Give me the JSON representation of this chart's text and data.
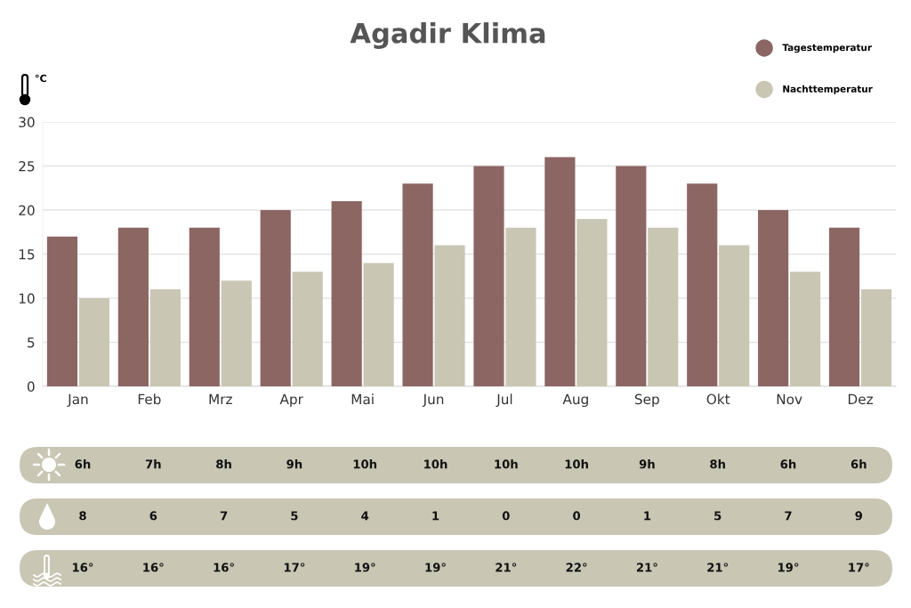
{
  "chart_data": [
    {
      "type": "bar",
      "title": "Agadir Klima",
      "ylabel": "°C",
      "categories": [
        "Jan",
        "Feb",
        "Mrz",
        "Apr",
        "Mai",
        "Jun",
        "Jul",
        "Aug",
        "Sep",
        "Okt",
        "Nov",
        "Dez"
      ],
      "series": [
        {
          "name": "Tagestemperatur",
          "color": "#8c6663",
          "values": [
            17,
            18,
            18,
            20,
            21,
            23,
            25,
            26,
            25,
            23,
            20,
            18
          ]
        },
        {
          "name": "Nachttemperatur",
          "color": "#c9c6b4",
          "values": [
            10,
            11,
            12,
            13,
            14,
            16,
            18,
            19,
            18,
            16,
            13,
            11
          ]
        }
      ],
      "ylim": [
        0,
        30
      ],
      "yticks": [
        0,
        5,
        10,
        15,
        20,
        25,
        30
      ],
      "grid": "y",
      "legend": "top right"
    },
    {
      "type": "other",
      "categories": [
        null,
        null,
        null,
        null,
        null,
        null,
        null,
        null,
        null,
        null,
        null,
        null
      ],
      "values": [
        6,
        7,
        8,
        9,
        10,
        10,
        10,
        10,
        9,
        8,
        6,
        6
      ],
      "value_labels": [
        "6h",
        "7h",
        "8h",
        "9h",
        "10h",
        "10h",
        "10h",
        "10h",
        "9h",
        "8h",
        "6h",
        "6h"
      ]
    },
    {
      "type": "other",
      "categories": [
        null,
        null,
        null,
        null,
        null,
        null,
        null,
        null,
        null,
        null,
        null,
        null
      ],
      "values": [
        8,
        6,
        7,
        5,
        4,
        1,
        0,
        0,
        1,
        5,
        7,
        9
      ],
      "data_labels": true
    },
    {
      "type": "other",
      "categories": [
        null,
        null,
        null,
        null,
        null,
        null,
        null,
        null,
        null,
        null,
        null,
        null
      ],
      "values": [
        16,
        16,
        16,
        17,
        19,
        19,
        21,
        22,
        21,
        21,
        19,
        17
      ],
      "value_labels": [
        "16°",
        "16°",
        "16°",
        "17°",
        "19°",
        "19°",
        "21°",
        "22°",
        "21°",
        "21°",
        "19°",
        "17°"
      ]
    }
  ]
}
